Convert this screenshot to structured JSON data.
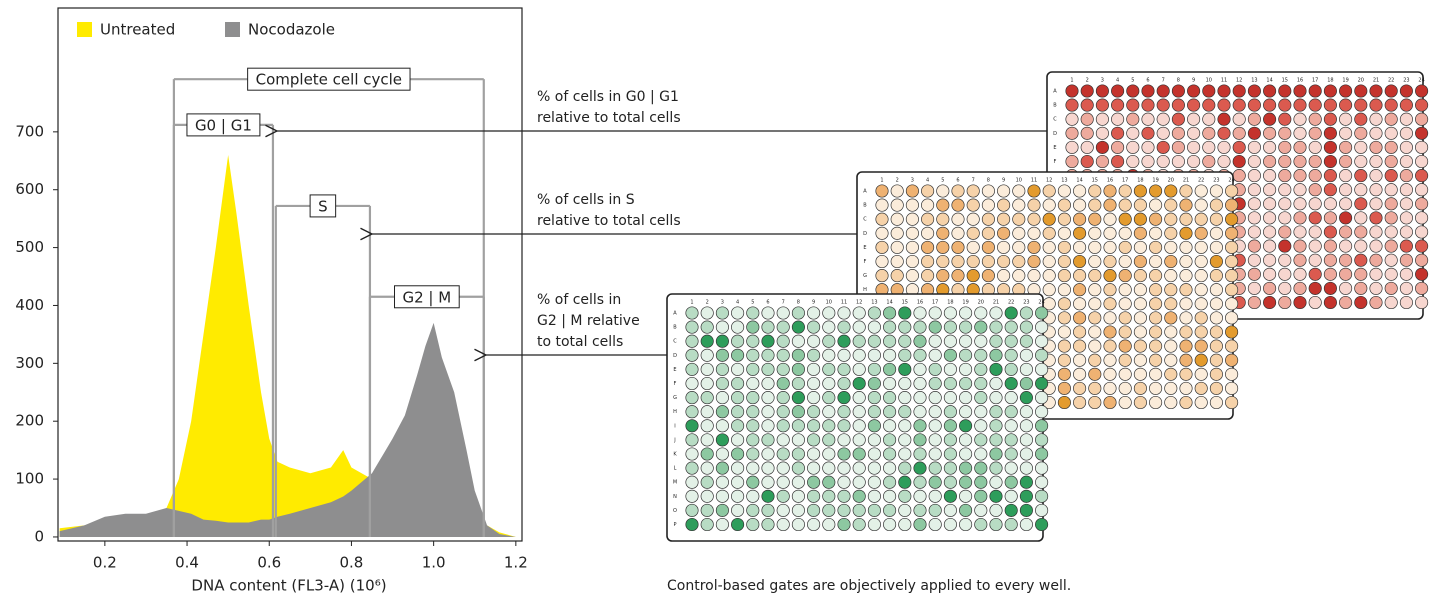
{
  "chart_data": {
    "type": "area",
    "x_label": "DNA content (FL3-A) (10⁶)",
    "x": [
      0.09,
      0.15,
      0.2,
      0.25,
      0.3,
      0.35,
      0.38,
      0.41,
      0.44,
      0.47,
      0.5,
      0.52,
      0.55,
      0.58,
      0.6,
      0.62,
      0.65,
      0.7,
      0.75,
      0.78,
      0.8,
      0.85,
      0.9,
      0.93,
      0.96,
      0.98,
      1.0,
      1.02,
      1.05,
      1.08,
      1.1,
      1.13,
      1.16,
      1.2
    ],
    "series": [
      {
        "name": "Untreated",
        "color": "#ffeb00",
        "values": [
          15,
          20,
          30,
          25,
          35,
          50,
          100,
          200,
          350,
          500,
          660,
          560,
          400,
          250,
          170,
          130,
          120,
          110,
          120,
          150,
          120,
          100,
          110,
          130,
          200,
          320,
          350,
          290,
          180,
          90,
          45,
          20,
          8,
          0
        ]
      },
      {
        "name": "Nocodazole",
        "color": "#8e8e8f",
        "values": [
          10,
          20,
          35,
          40,
          40,
          50,
          45,
          40,
          30,
          28,
          25,
          25,
          25,
          30,
          30,
          35,
          40,
          50,
          60,
          70,
          80,
          110,
          170,
          210,
          280,
          330,
          370,
          310,
          250,
          150,
          80,
          20,
          5,
          0
        ]
      }
    ],
    "xlim": [
      0.086,
      1.215
    ],
    "ylim": [
      -7,
      914
    ],
    "xticks": [
      0.2,
      0.4,
      0.6,
      0.8,
      {
        "value": 1,
        "label": "1.0"
      },
      1.2
    ],
    "yticks": [
      0,
      100,
      200,
      300,
      400,
      500,
      600,
      700
    ],
    "gate_color": "#a0a0a0",
    "gates": [
      {
        "label": "Complete cell cycle",
        "x0": 0.368,
        "x1": 1.122,
        "y": 791
      },
      {
        "label": "G0 | G1",
        "x0": 0.368,
        "x1": 0.609,
        "y": 712
      },
      {
        "label": "S",
        "x0": 0.616,
        "x1": 0.845,
        "y": 572
      },
      {
        "label": "G2 | M",
        "x0": 0.845,
        "x1": 1.122,
        "y": 415
      }
    ]
  },
  "callouts": [
    {
      "lines": [
        "% of cells in G0 | G1",
        "relative to total cells"
      ]
    },
    {
      "lines": [
        "% of cells in S",
        "relative to total cells"
      ]
    },
    {
      "lines": [
        "% of cells in",
        "G2 | M relative",
        "to total cells"
      ]
    }
  ],
  "plates": {
    "columns": [
      "1",
      "2",
      "3",
      "4",
      "5",
      "6",
      "7",
      "8",
      "9",
      "10",
      "11",
      "12",
      "13",
      "14",
      "15",
      "16",
      "17",
      "18",
      "19",
      "20",
      "21",
      "22",
      "23",
      "24"
    ],
    "rows": [
      "A",
      "B",
      "C",
      "D",
      "E",
      "F",
      "G",
      "H",
      "I",
      "J",
      "K",
      "L",
      "M",
      "N",
      "O",
      "P"
    ],
    "palettes": [
      [
        "#f7d6cf",
        "#eeaa9d",
        "#db5a4f",
        "#c4332c"
      ],
      [
        "#fbecda",
        "#f6d2a9",
        "#efb272",
        "#e39b2e"
      ],
      [
        "#e3f1e7",
        "#b8dcc4",
        "#8dc8a1",
        "#2e9d5b"
      ]
    ]
  },
  "caption": "Control-based gates are objectively applied to every well."
}
